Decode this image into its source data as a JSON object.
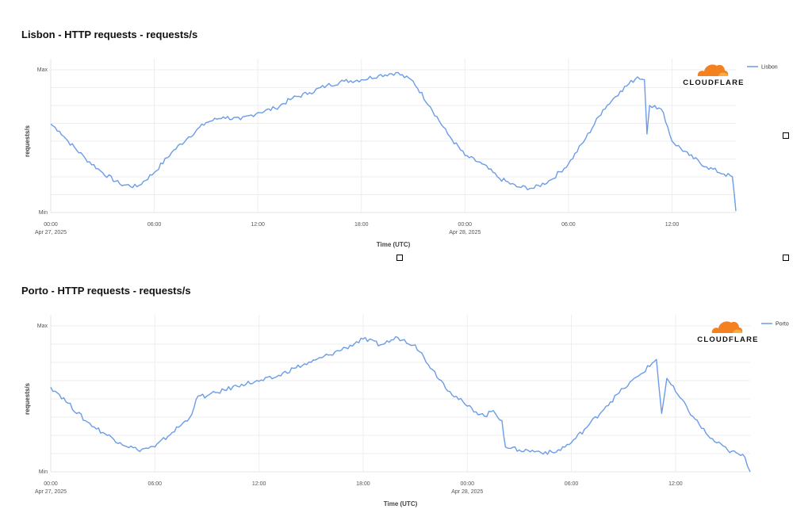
{
  "chart_data": [
    {
      "type": "line",
      "title": "Lisbon - HTTP requests - requests/s",
      "xlabel": "Time (UTC)",
      "ylabel": "requests/s",
      "y_tick_labels": [
        "Max",
        "Min"
      ],
      "x_ticks": [
        {
          "t": 0,
          "label": "00:00",
          "sub": "Apr 27, 2025"
        },
        {
          "t": 6,
          "label": "06:00",
          "sub": ""
        },
        {
          "t": 12,
          "label": "12:00",
          "sub": ""
        },
        {
          "t": 18,
          "label": "18:00",
          "sub": ""
        },
        {
          "t": 24,
          "label": "00:00",
          "sub": "Apr 28, 2025"
        },
        {
          "t": 30,
          "label": "06:00",
          "sub": ""
        },
        {
          "t": 36,
          "label": "12:00",
          "sub": ""
        }
      ],
      "xlim": [
        0,
        39.7
      ],
      "ylim": [
        0,
        100
      ],
      "grid": true,
      "legend_position": "top-right",
      "logo": "CLOUDFLARE",
      "series": [
        {
          "name": "Lisbon",
          "color": "#6a9ce8",
          "x": [
            0,
            0.5,
            1,
            2,
            3,
            4,
            5,
            6,
            7,
            8,
            9,
            10,
            11,
            12,
            13,
            14,
            15,
            16,
            17,
            18,
            19,
            20,
            21,
            22,
            23,
            24,
            25,
            26,
            27,
            28,
            29,
            30,
            31,
            32,
            33,
            34,
            34.4,
            34.55,
            34.7,
            35,
            35.5,
            36,
            37,
            38,
            39,
            39.5,
            39.7
          ],
          "y": [
            62,
            57,
            50,
            38,
            28,
            20,
            18,
            28,
            42,
            53,
            63,
            67,
            65,
            70,
            73,
            80,
            84,
            89,
            92,
            93,
            96,
            98,
            92,
            74,
            55,
            40,
            34,
            24,
            18,
            17,
            23,
            34,
            52,
            72,
            85,
            95,
            93,
            55,
            75,
            75,
            70,
            50,
            40,
            32,
            27,
            25,
            1
          ]
        }
      ]
    },
    {
      "type": "line",
      "title": "Porto - HTTP requests - requests/s",
      "xlabel": "Time (UTC)",
      "ylabel": "requests/s",
      "y_tick_labels": [
        "Max",
        "Min"
      ],
      "x_ticks": [
        {
          "t": 0,
          "label": "00:00",
          "sub": "Apr 27, 2025"
        },
        {
          "t": 6,
          "label": "06:00",
          "sub": ""
        },
        {
          "t": 12,
          "label": "12:00",
          "sub": ""
        },
        {
          "t": 18,
          "label": "18:00",
          "sub": ""
        },
        {
          "t": 24,
          "label": "00:00",
          "sub": "Apr 28, 2025"
        },
        {
          "t": 30,
          "label": "06:00",
          "sub": ""
        },
        {
          "t": 36,
          "label": "12:00",
          "sub": ""
        }
      ],
      "xlim": [
        0,
        40.3
      ],
      "ylim": [
        0,
        100
      ],
      "grid": true,
      "legend_position": "top-right",
      "logo": "CLOUDFLARE",
      "series": [
        {
          "name": "Porto",
          "color": "#6a9ce8",
          "x": [
            0,
            0.5,
            1,
            2,
            3,
            4,
            5,
            6,
            7,
            8,
            8.5,
            9,
            10,
            11,
            12,
            13,
            14,
            15,
            16,
            17,
            18,
            19,
            20,
            21,
            22,
            23,
            24,
            25,
            25.5,
            26,
            26.2,
            26.5,
            27,
            28,
            29,
            30,
            31,
            32,
            33,
            34,
            34.9,
            35.2,
            35.5,
            36,
            37,
            38,
            39,
            40,
            40.3
          ],
          "y": [
            58,
            53,
            47,
            35,
            27,
            20,
            15,
            17,
            27,
            37,
            52,
            52,
            56,
            60,
            62,
            65,
            71,
            75,
            80,
            85,
            91,
            87,
            92,
            87,
            70,
            55,
            45,
            38,
            42,
            35,
            17,
            16,
            15,
            14,
            13,
            20,
            32,
            45,
            57,
            67,
            77,
            40,
            64,
            55,
            38,
            23,
            15,
            10,
            0
          ]
        }
      ]
    }
  ]
}
